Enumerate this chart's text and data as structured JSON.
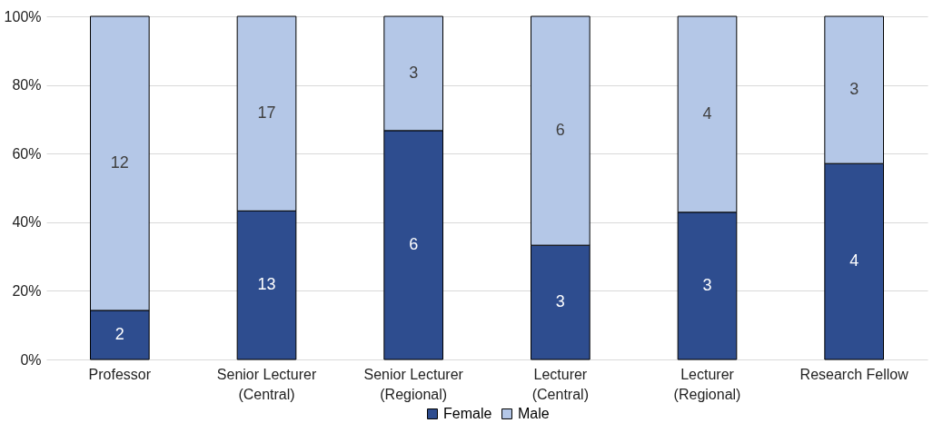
{
  "chart_data": {
    "type": "bar",
    "stacked": true,
    "categories": [
      "Professor",
      "Senior Lecturer\n(Central)",
      "Senior Lecturer\n(Regional)",
      "Lecturer\n(Central)",
      "Lecturer\n(Regional)",
      "Research Fellow"
    ],
    "series": [
      {
        "name": "Female",
        "color": "#2e4d8f",
        "values": [
          14.3,
          43.3,
          66.7,
          33.3,
          42.9,
          57.1
        ]
      },
      {
        "name": "Male",
        "color": "#b4c7e7",
        "values": [
          85.7,
          56.7,
          33.3,
          66.7,
          57.1,
          42.9
        ]
      }
    ],
    "annotations": [
      "2",
      "13",
      "6",
      "3",
      "3",
      "4",
      "12",
      "17",
      "3",
      "6",
      "4",
      "3"
    ],
    "ylim": [
      0,
      100
    ],
    "yticks": [
      {
        "value": 0,
        "label": "0%"
      },
      {
        "value": 20,
        "label": "20%"
      },
      {
        "value": 40,
        "label": "40%"
      },
      {
        "value": 60,
        "label": "60%"
      },
      {
        "value": 80,
        "label": "80%"
      },
      {
        "value": 100,
        "label": "100%"
      }
    ],
    "grid": "y",
    "legend": "bottom"
  }
}
